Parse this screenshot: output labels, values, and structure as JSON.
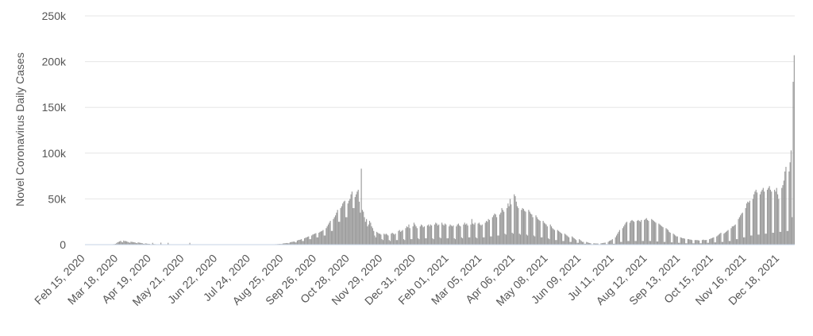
{
  "chart_data": {
    "type": "bar",
    "y_label": "Novel Coronavirus Daily Cases",
    "color": "#9a9a9a",
    "grid": true,
    "ylim": [
      0,
      250000
    ],
    "yticks": [
      0,
      {
        "value": 50000,
        "label": "50k"
      },
      {
        "value": 100000,
        "label": "100k"
      },
      {
        "value": 150000,
        "label": "150k"
      },
      {
        "value": 200000,
        "label": "200k"
      },
      {
        "value": 250000,
        "label": "250k"
      }
    ],
    "categories": [
      "Feb 15, 2020",
      null,
      null,
      null,
      null,
      null,
      null,
      null,
      null,
      null,
      null,
      null,
      null,
      null,
      null,
      null,
      null,
      null,
      null,
      null,
      null,
      null,
      null,
      null,
      null,
      null,
      null,
      null,
      null,
      null,
      null,
      null,
      "Mar 18, 2020",
      null,
      null,
      null,
      null,
      null,
      null,
      null,
      null,
      null,
      null,
      null,
      null,
      null,
      null,
      null,
      null,
      null,
      null,
      null,
      null,
      null,
      null,
      null,
      null,
      null,
      null,
      null,
      null,
      null,
      null,
      null,
      "Apr 19, 2020",
      null,
      null,
      null,
      null,
      null,
      null,
      null,
      null,
      null,
      null,
      null,
      null,
      null,
      null,
      null,
      null,
      null,
      null,
      null,
      null,
      null,
      null,
      null,
      null,
      null,
      null,
      null,
      null,
      null,
      null,
      null,
      "May 21, 2020",
      null,
      null,
      null,
      null,
      null,
      null,
      null,
      null,
      null,
      null,
      null,
      null,
      null,
      null,
      null,
      null,
      null,
      null,
      null,
      null,
      null,
      null,
      null,
      null,
      null,
      null,
      null,
      null,
      null,
      null,
      null,
      "Jun 22, 2020",
      null,
      null,
      null,
      null,
      null,
      null,
      null,
      null,
      null,
      null,
      null,
      null,
      null,
      null,
      null,
      null,
      null,
      null,
      null,
      null,
      null,
      null,
      null,
      null,
      null,
      null,
      null,
      null,
      null,
      null,
      null,
      "Jul 24, 2020",
      null,
      null,
      null,
      null,
      null,
      null,
      null,
      null,
      null,
      null,
      null,
      null,
      null,
      null,
      null,
      null,
      null,
      null,
      null,
      null,
      null,
      null,
      null,
      null,
      null,
      null,
      null,
      null,
      null,
      null,
      null,
      "Aug 25, 2020",
      null,
      null,
      null,
      null,
      null,
      null,
      null,
      null,
      null,
      null,
      null,
      null,
      null,
      null,
      null,
      null,
      null,
      null,
      null,
      null,
      null,
      null,
      null,
      null,
      null,
      null,
      null,
      null,
      null,
      null,
      null,
      "Sep 26, 2020",
      null,
      null,
      null,
      null,
      null,
      null,
      null,
      null,
      null,
      null,
      null,
      null,
      null,
      null,
      null,
      null,
      null,
      null,
      null,
      null,
      null,
      null,
      null,
      null,
      null,
      null,
      null,
      null,
      null,
      null,
      null,
      "Oct 28, 2020",
      null,
      null,
      null,
      null,
      null,
      null,
      null,
      null,
      null,
      null,
      null,
      null,
      null,
      null,
      null,
      null,
      null,
      null,
      null,
      null,
      null,
      null,
      null,
      null,
      null,
      null,
      null,
      null,
      null,
      null,
      null,
      "Nov 29, 2020",
      null,
      null,
      null,
      null,
      null,
      null,
      null,
      null,
      null,
      null,
      null,
      null,
      null,
      null,
      null,
      null,
      null,
      null,
      null,
      null,
      null,
      null,
      null,
      null,
      null,
      null,
      null,
      null,
      null,
      null,
      null,
      "Dec 31, 2020",
      null,
      null,
      null,
      null,
      null,
      null,
      null,
      null,
      null,
      null,
      null,
      null,
      null,
      null,
      null,
      null,
      null,
      null,
      null,
      null,
      null,
      null,
      null,
      null,
      null,
      null,
      null,
      null,
      null,
      null,
      null,
      "Feb 01, 2021",
      null,
      null,
      null,
      null,
      null,
      null,
      null,
      null,
      null,
      null,
      null,
      null,
      null,
      null,
      null,
      null,
      null,
      null,
      null,
      null,
      null,
      null,
      null,
      null,
      null,
      null,
      null,
      null,
      null,
      null,
      null,
      "Mar 05, 2021",
      null,
      null,
      null,
      null,
      null,
      null,
      null,
      null,
      null,
      null,
      null,
      null,
      null,
      null,
      null,
      null,
      null,
      null,
      null,
      null,
      null,
      null,
      null,
      null,
      null,
      null,
      null,
      null,
      null,
      null,
      null,
      "Apr 06, 2021",
      null,
      null,
      null,
      null,
      null,
      null,
      null,
      null,
      null,
      null,
      null,
      null,
      null,
      null,
      null,
      null,
      null,
      null,
      null,
      null,
      null,
      null,
      null,
      null,
      null,
      null,
      null,
      null,
      null,
      null,
      null,
      "May 08, 2021",
      null,
      null,
      null,
      null,
      null,
      null,
      null,
      null,
      null,
      null,
      null,
      null,
      null,
      null,
      null,
      null,
      null,
      null,
      null,
      null,
      null,
      null,
      null,
      null,
      null,
      null,
      null,
      null,
      null,
      null,
      null,
      "Jun 09, 2021",
      null,
      null,
      null,
      null,
      null,
      null,
      null,
      null,
      null,
      null,
      null,
      null,
      null,
      null,
      null,
      null,
      null,
      null,
      null,
      null,
      null,
      null,
      null,
      null,
      null,
      null,
      null,
      null,
      null,
      null,
      null,
      "Jul 11, 2021",
      null,
      null,
      null,
      null,
      null,
      null,
      null,
      null,
      null,
      null,
      null,
      null,
      null,
      null,
      null,
      null,
      null,
      null,
      null,
      null,
      null,
      null,
      null,
      null,
      null,
      null,
      null,
      null,
      null,
      null,
      null,
      "Aug 12, 2021",
      null,
      null,
      null,
      null,
      null,
      null,
      null,
      null,
      null,
      null,
      null,
      null,
      null,
      null,
      null,
      null,
      null,
      null,
      null,
      null,
      null,
      null,
      null,
      null,
      null,
      null,
      null,
      null,
      null,
      null,
      null,
      "Sep 13, 2021",
      null,
      null,
      null,
      null,
      null,
      null,
      null,
      null,
      null,
      null,
      null,
      null,
      null,
      null,
      null,
      null,
      null,
      null,
      null,
      null,
      null,
      null,
      null,
      null,
      null,
      null,
      null,
      null,
      null,
      null,
      null,
      "Oct 15, 2021",
      null,
      null,
      null,
      null,
      null,
      null,
      null,
      null,
      null,
      null,
      null,
      null,
      null,
      null,
      null,
      null,
      null,
      null,
      null,
      null,
      null,
      null,
      null,
      null,
      null,
      null,
      null,
      null,
      null,
      null,
      null,
      "Nov 16, 2021",
      null,
      null,
      null,
      null,
      null,
      null,
      null,
      null,
      null,
      null,
      null,
      null,
      null,
      null,
      null,
      null,
      null,
      null,
      null,
      null,
      null,
      null,
      null,
      null,
      null,
      null,
      null,
      null,
      null,
      null,
      null,
      "Dec 18, 2021",
      null,
      null,
      null,
      null,
      null,
      null,
      null,
      null,
      null,
      null,
      null,
      null,
      null,
      null
    ],
    "values": [
      0,
      0,
      0,
      0,
      0,
      0,
      0,
      0,
      0,
      0,
      0,
      0,
      0,
      0,
      0,
      0,
      0,
      0,
      0,
      0,
      0,
      0,
      0,
      0,
      0,
      0,
      200,
      500,
      600,
      900,
      1500,
      2500,
      3000,
      3500,
      4200,
      3000,
      2500,
      4500,
      3800,
      4000,
      3500,
      3000,
      2500,
      2000,
      3200,
      3000,
      2800,
      2600,
      2400,
      1800,
      1500,
      2500,
      2200,
      2000,
      1800,
      1600,
      1000,
      800,
      1400,
      1200,
      1000,
      900,
      800,
      500,
      400,
      2000,
      700,
      600,
      500,
      400,
      300,
      300,
      400,
      2200,
      400,
      300,
      300,
      200,
      200,
      300,
      2000,
      300,
      200,
      200,
      200,
      200,
      300,
      300,
      200,
      200,
      200,
      200,
      200,
      300,
      300,
      200,
      200,
      200,
      200,
      200,
      300,
      2000,
      300,
      200,
      200,
      100,
      100,
      200,
      200,
      200,
      200,
      100,
      100,
      100,
      200,
      200,
      200,
      200,
      100,
      100,
      100,
      200,
      200,
      200,
      200,
      100,
      100,
      100,
      200,
      200,
      200,
      200,
      100,
      100,
      100,
      200,
      200,
      200,
      200,
      100,
      100,
      100,
      200,
      200,
      200,
      200,
      100,
      100,
      100,
      200,
      200,
      200,
      200,
      100,
      100,
      100,
      200,
      200,
      200,
      200,
      100,
      100,
      100,
      200,
      200,
      200,
      200,
      100,
      100,
      100,
      200,
      200,
      200,
      200,
      100,
      100,
      100,
      200,
      300,
      300,
      200,
      200,
      300,
      300,
      500,
      500,
      600,
      700,
      800,
      700,
      700,
      1200,
      1400,
      1500,
      1700,
      1800,
      1500,
      1500,
      2500,
      2800,
      3000,
      3200,
      3500,
      2500,
      2500,
      4500,
      5000,
      5200,
      5500,
      6000,
      4000,
      4000,
      7000,
      7500,
      8000,
      8500,
      9000,
      6000,
      6000,
      10000,
      11000,
      11500,
      12000,
      12500,
      8000,
      8000,
      13000,
      14000,
      14500,
      15000,
      16000,
      10000,
      10000,
      18000,
      20000,
      22000,
      24000,
      26000,
      15000,
      15000,
      28000,
      30000,
      32000,
      35000,
      38000,
      25000,
      25000,
      40000,
      42000,
      45000,
      47000,
      48000,
      30000,
      30000,
      45000,
      48000,
      50000,
      55000,
      58000,
      40000,
      40000,
      52000,
      55000,
      58000,
      60000,
      47000,
      35000,
      83000,
      38000,
      36000,
      30000,
      25000,
      28000,
      20000,
      22000,
      26000,
      24000,
      20000,
      18000,
      15000,
      10000,
      8000,
      14000,
      13000,
      12000,
      12000,
      11000,
      6000,
      5000,
      12000,
      11000,
      12000,
      11000,
      10000,
      5000,
      4000,
      12000,
      13000,
      12000,
      11000,
      12000,
      5000,
      5000,
      15000,
      16000,
      14000,
      15000,
      16000,
      6000,
      5000,
      18000,
      20000,
      19000,
      22000,
      18000,
      6000,
      6000,
      20000,
      24000,
      22000,
      20000,
      18000,
      7000,
      6000,
      20000,
      22000,
      21000,
      19000,
      20000,
      7000,
      7000,
      21000,
      22000,
      20000,
      22000,
      21000,
      7000,
      6000,
      22000,
      24000,
      23000,
      21000,
      22000,
      8000,
      7000,
      24000,
      22000,
      21000,
      23000,
      22000,
      7000,
      7000,
      20000,
      22000,
      21000,
      20000,
      21000,
      7000,
      6000,
      20000,
      22000,
      23000,
      21000,
      20000,
      8000,
      7000,
      22000,
      24000,
      22000,
      23000,
      21000,
      8000,
      8000,
      22000,
      28000,
      23000,
      22000,
      24000,
      8000,
      7000,
      23000,
      24000,
      22000,
      21000,
      22000,
      8000,
      8000,
      24000,
      26000,
      25000,
      28000,
      27000,
      9000,
      9000,
      30000,
      32000,
      34000,
      33000,
      30000,
      10000,
      10000,
      33000,
      35000,
      40000,
      38000,
      36000,
      12000,
      11000,
      40000,
      45000,
      42000,
      50000,
      44000,
      13000,
      12000,
      55000,
      53000,
      47000,
      42000,
      40000,
      12000,
      11000,
      38000,
      40000,
      39000,
      37000,
      36000,
      11000,
      10000,
      38000,
      36000,
      34000,
      33000,
      30000,
      10000,
      9000,
      32000,
      30000,
      28000,
      27000,
      26000,
      8000,
      8000,
      26000,
      24000,
      23000,
      22000,
      20000,
      7000,
      6000,
      22000,
      20000,
      18000,
      17000,
      16000,
      5000,
      5000,
      16000,
      15000,
      14000,
      13000,
      12000,
      4000,
      4000,
      12000,
      11000,
      10000,
      9000,
      8000,
      3000,
      3000,
      9000,
      8000,
      7000,
      6000,
      5000,
      2000,
      2000,
      6000,
      5000,
      4000,
      3000,
      3000,
      1000,
      1000,
      3000,
      2500,
      2000,
      1800,
      1500,
      500,
      500,
      1500,
      1400,
      1200,
      1300,
      1200,
      400,
      400,
      1500,
      1600,
      1800,
      2000,
      2200,
      600,
      600,
      3000,
      4000,
      4500,
      5000,
      6000,
      1000,
      1000,
      8000,
      10000,
      12000,
      14000,
      16000,
      3000,
      3000,
      18000,
      20000,
      22000,
      24000,
      25000,
      4000,
      4000,
      24000,
      26000,
      27000,
      26000,
      25000,
      4000,
      4000,
      26000,
      27000,
      26000,
      25000,
      27000,
      4000,
      4000,
      27000,
      28000,
      29000,
      27000,
      26000,
      4000,
      4000,
      28000,
      27000,
      26000,
      25000,
      24000,
      3500,
      3500,
      23000,
      22000,
      21000,
      20000,
      19000,
      3000,
      3000,
      18000,
      17000,
      16000,
      14000,
      13000,
      2500,
      2500,
      12000,
      11000,
      10000,
      9000,
      9000,
      2000,
      2000,
      8000,
      7500,
      7000,
      7000,
      6500,
      1500,
      1500,
      6000,
      6000,
      5500,
      5500,
      5000,
      1500,
      1500,
      5000,
      5000,
      5000,
      4800,
      4500,
      1500,
      1500,
      5000,
      5500,
      5000,
      5000,
      5200,
      2000,
      2000,
      6000,
      6500,
      7000,
      7500,
      8000,
      2500,
      2500,
      9000,
      10000,
      11000,
      12000,
      13000,
      3000,
      3000,
      12000,
      13000,
      14000,
      15000,
      16000,
      4000,
      4000,
      18000,
      20000,
      20000,
      21000,
      22000,
      6000,
      6000,
      28000,
      30000,
      32000,
      34000,
      35000,
      8000,
      8000,
      40000,
      45000,
      47000,
      46000,
      48000,
      10000,
      10000,
      50000,
      55000,
      58000,
      60000,
      57000,
      11000,
      11000,
      55000,
      58000,
      60000,
      62000,
      58000,
      12000,
      12000,
      60000,
      62000,
      64000,
      60000,
      58000,
      13000,
      13000,
      60000,
      58000,
      62000,
      55000,
      50000,
      14000,
      14000,
      62000,
      65000,
      70000,
      80000,
      85000,
      15000,
      15000,
      80000,
      90000,
      103000,
      30000,
      178000,
      207000
    ]
  }
}
